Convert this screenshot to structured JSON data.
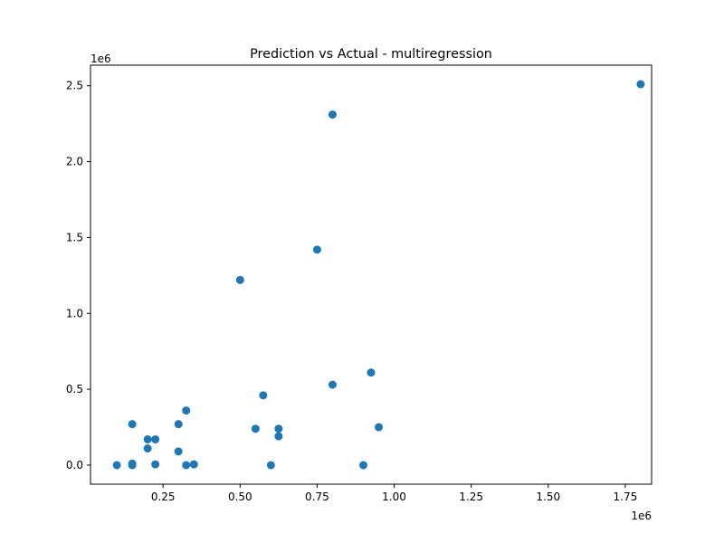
{
  "chart_data": {
    "type": "scatter",
    "title": "Prediction vs Actual - multiregression",
    "xlabel": "",
    "ylabel": "",
    "x_offset_label": "1e6",
    "y_offset_label": "1e6",
    "xlim": [
      0.0145,
      1.8355
    ],
    "ylim": [
      -0.1255,
      2.6355
    ],
    "x_ticks": [
      0.25,
      0.5,
      0.75,
      1.0,
      1.25,
      1.5,
      1.75
    ],
    "x_tick_labels": [
      "0.25",
      "0.50",
      "0.75",
      "1.00",
      "1.25",
      "1.50",
      "1.75"
    ],
    "y_ticks": [
      0.0,
      0.5,
      1.0,
      1.5,
      2.0,
      2.5
    ],
    "y_tick_labels": [
      "0.0",
      "0.5",
      "1.0",
      "1.5",
      "2.0",
      "2.5"
    ],
    "grid": false,
    "marker_color": "#1f77b4",
    "points": [
      {
        "x": 0.1,
        "y": 0.0
      },
      {
        "x": 0.15,
        "y": 0.27
      },
      {
        "x": 0.15,
        "y": 0.0
      },
      {
        "x": 0.15,
        "y": 0.01
      },
      {
        "x": 0.2,
        "y": 0.17
      },
      {
        "x": 0.2,
        "y": 0.11
      },
      {
        "x": 0.225,
        "y": 0.17
      },
      {
        "x": 0.225,
        "y": 0.005
      },
      {
        "x": 0.3,
        "y": 0.27
      },
      {
        "x": 0.3,
        "y": 0.09
      },
      {
        "x": 0.325,
        "y": 0.36
      },
      {
        "x": 0.325,
        "y": 0.0
      },
      {
        "x": 0.35,
        "y": 0.005
      },
      {
        "x": 0.5,
        "y": 1.22
      },
      {
        "x": 0.55,
        "y": 0.24
      },
      {
        "x": 0.575,
        "y": 0.46
      },
      {
        "x": 0.6,
        "y": 0.0
      },
      {
        "x": 0.625,
        "y": 0.24
      },
      {
        "x": 0.625,
        "y": 0.19
      },
      {
        "x": 0.75,
        "y": 1.42
      },
      {
        "x": 0.8,
        "y": 2.31
      },
      {
        "x": 0.8,
        "y": 0.53
      },
      {
        "x": 0.9,
        "y": 0.0
      },
      {
        "x": 0.925,
        "y": 0.61
      },
      {
        "x": 0.95,
        "y": 0.25
      },
      {
        "x": 1.8,
        "y": 2.51
      }
    ]
  }
}
